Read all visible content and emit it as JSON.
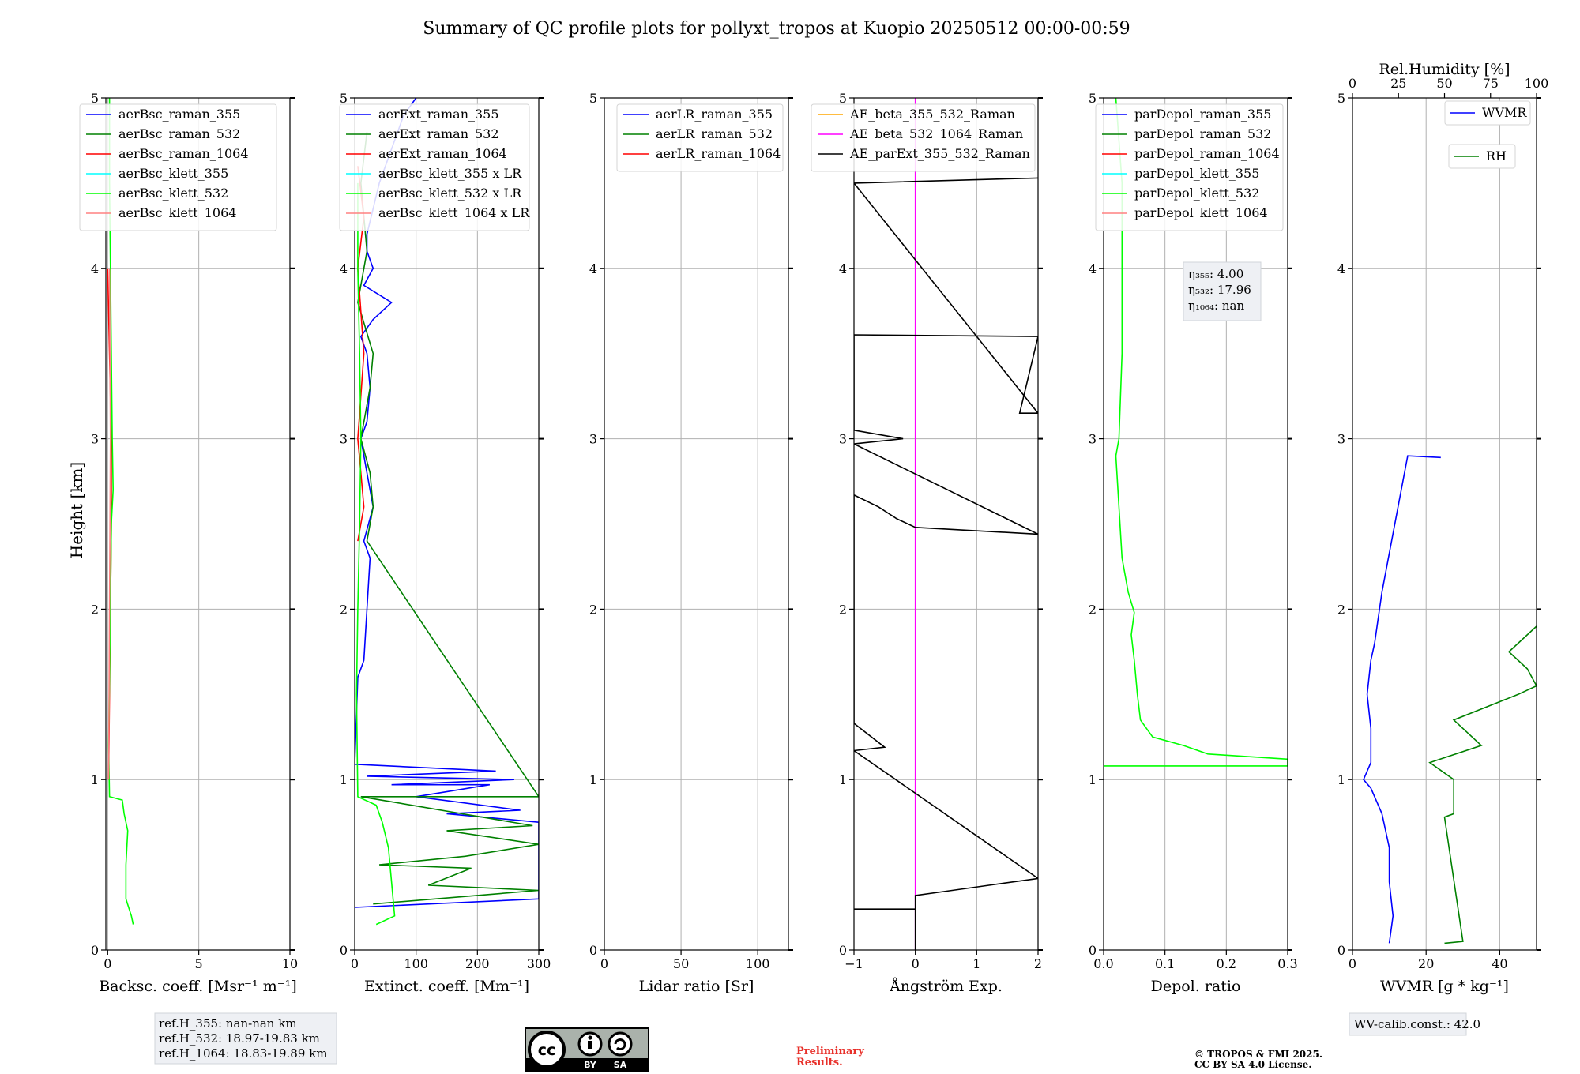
{
  "title": "Summary of QC profile plots for pollyxt_tropos at Kuopio 20250512 00:00-00:59",
  "ylabel": "Height [km]",
  "y_ticks": [
    "0",
    "1",
    "2",
    "3",
    "4",
    "5"
  ],
  "panels": [
    {
      "xlabel": "Backsc. coeff. [Msr⁻¹ m⁻¹]",
      "xlim": [
        -0.1,
        10
      ],
      "xticks": [
        0,
        5,
        10
      ],
      "legend": [
        "aerBsc_raman_355",
        "aerBsc_raman_532",
        "aerBsc_raman_1064",
        "aerBsc_klett_355",
        "aerBsc_klett_532",
        "aerBsc_klett_1064"
      ]
    },
    {
      "xlabel": "Extinct. coeff. [Mm⁻¹]",
      "xlim": [
        0,
        300
      ],
      "xticks": [
        0,
        100,
        200,
        300
      ],
      "legend": [
        "aerExt_raman_355",
        "aerExt_raman_532",
        "aerExt_raman_1064",
        "aerBsc_klett_355 x LR",
        "aerBsc_klett_532 x LR",
        "aerBsc_klett_1064 x LR"
      ]
    },
    {
      "xlabel": "Lidar ratio [Sr]",
      "xlim": [
        0,
        120
      ],
      "xticks": [
        0,
        50,
        100
      ],
      "legend": [
        "aerLR_raman_355",
        "aerLR_raman_532",
        "aerLR_raman_1064"
      ]
    },
    {
      "xlabel": "Ångström Exp.",
      "xlim": [
        -1,
        2
      ],
      "xticks": [
        -1,
        0,
        1,
        2
      ],
      "xticklabels": [
        "−1",
        "0",
        "1",
        "2"
      ],
      "legend": [
        "AE_beta_355_532_Raman",
        "AE_beta_532_1064_Raman",
        "AE_parExt_355_532_Raman"
      ]
    },
    {
      "xlabel": "Depol. ratio",
      "xlim": [
        0,
        0.3
      ],
      "xticks": [
        0,
        0.1,
        0.2,
        0.3
      ],
      "xticklabels": [
        "0.0",
        "0.1",
        "0.2",
        "0.3"
      ],
      "legend": [
        "parDepol_raman_355",
        "parDepol_raman_532",
        "parDepol_raman_1064",
        "parDepol_klett_355",
        "parDepol_klett_532",
        "parDepol_klett_1064"
      ],
      "eta": [
        "η₃₅₅: 4.00",
        "η₅₃₂: 17.96",
        "η₁₀₆₄: nan"
      ]
    },
    {
      "xlabel": "WVMR [g * kg⁻¹]",
      "xlim": [
        0,
        50
      ],
      "xticks": [
        0,
        20,
        40
      ],
      "top_label": "Rel.Humidity [%]",
      "top_xlim": [
        0,
        100
      ],
      "top_ticks": [
        0,
        25,
        50,
        75,
        100
      ],
      "legend": [
        "WVMR",
        "RH"
      ]
    }
  ],
  "footer": {
    "ref_h": [
      "ref.H_355: nan-nan km",
      "ref.H_532: 18.97-19.83 km",
      "ref.H_1064: 18.83-19.89 km"
    ],
    "preliminary": [
      "Preliminary",
      "Results."
    ],
    "copyright": [
      "© TROPOS & FMI 2025.",
      "CC BY SA 4.0 License."
    ],
    "wv_calib": "WV-calib.const.: 42.0",
    "license_badge": [
      "cc",
      "BY",
      "SA"
    ]
  },
  "colors": {
    "raman_355": "#0000ff",
    "raman_532": "#008000",
    "raman_1064": "#ff0000",
    "klett_355": "#00ffff",
    "klett_532": "#00ff00",
    "klett_1064": "#ff8080",
    "ae_355_532": "#ffa500",
    "ae_532_1064": "#ff00ff",
    "ae_parext": "#000000"
  },
  "chart_data": [
    {
      "type": "line",
      "xlabel": "Backsc. coeff. [Msr⁻¹ m⁻¹]",
      "ylabel": "Height [km]",
      "ylim": [
        0,
        5
      ],
      "xlim": [
        -0.1,
        10
      ],
      "series": [
        {
          "name": "aerBsc_raman_355",
          "points": []
        },
        {
          "name": "aerBsc_raman_532",
          "points": []
        },
        {
          "name": "aerBsc_raman_1064",
          "points": [
            [
              0.05,
              1.0
            ],
            [
              0.1,
              1.5
            ],
            [
              0.15,
              2.0
            ],
            [
              0.2,
              2.5
            ],
            [
              0.2,
              3.0
            ],
            [
              0.1,
              3.5
            ],
            [
              0.0,
              4.0
            ]
          ]
        },
        {
          "name": "aerBsc_klett_355",
          "points": []
        },
        {
          "name": "aerBsc_klett_532",
          "points": [
            [
              1.4,
              0.15
            ],
            [
              1.3,
              0.2
            ],
            [
              1.0,
              0.3
            ],
            [
              1.0,
              0.5
            ],
            [
              1.1,
              0.7
            ],
            [
              0.9,
              0.8
            ],
            [
              0.8,
              0.88
            ],
            [
              0.1,
              0.9
            ],
            [
              0.05,
              1.2
            ],
            [
              0.1,
              1.6
            ],
            [
              0.15,
              2.0
            ],
            [
              0.2,
              2.5
            ],
            [
              0.3,
              2.7
            ],
            [
              0.25,
              3.0
            ],
            [
              0.2,
              3.5
            ],
            [
              0.15,
              4.0
            ],
            [
              0.1,
              4.5
            ],
            [
              0.1,
              5.0
            ]
          ]
        },
        {
          "name": "aerBsc_klett_1064",
          "points": [
            [
              0.05,
              1.0
            ],
            [
              0.1,
              2.0
            ],
            [
              0.15,
              3.0
            ],
            [
              0.1,
              4.0
            ]
          ]
        }
      ]
    },
    {
      "type": "line",
      "xlabel": "Extinct. coeff. [Mm⁻¹]",
      "ylabel": "Height [km]",
      "ylim": [
        0,
        5
      ],
      "xlim": [
        0,
        300
      ],
      "series": [
        {
          "name": "aerExt_raman_355",
          "points": [
            [
              0,
              0.25
            ],
            [
              300,
              0.3
            ],
            [
              300,
              0.75
            ],
            [
              150,
              0.8
            ],
            [
              270,
              0.82
            ],
            [
              100,
              0.9
            ],
            [
              220,
              0.97
            ],
            [
              60,
              0.97
            ],
            [
              260,
              1.0
            ],
            [
              20,
              1.02
            ],
            [
              230,
              1.05
            ],
            [
              0,
              1.09
            ],
            [
              5,
              1.6
            ],
            [
              15,
              1.7
            ],
            [
              20,
              2.0
            ],
            [
              25,
              2.3
            ],
            [
              15,
              2.4
            ],
            [
              30,
              2.6
            ],
            [
              15,
              2.9
            ],
            [
              10,
              3.0
            ],
            [
              20,
              3.1
            ],
            [
              25,
              3.3
            ],
            [
              20,
              3.5
            ],
            [
              10,
              3.6
            ],
            [
              30,
              3.7
            ],
            [
              60,
              3.8
            ],
            [
              15,
              3.9
            ],
            [
              30,
              4.0
            ],
            [
              20,
              4.1
            ],
            [
              20,
              4.2
            ],
            [
              40,
              4.5
            ],
            [
              80,
              4.9
            ],
            [
              100,
              5.0
            ]
          ]
        },
        {
          "name": "aerExt_raman_532",
          "points": [
            [
              30,
              0.27
            ],
            [
              300,
              0.35
            ],
            [
              120,
              0.38
            ],
            [
              190,
              0.48
            ],
            [
              40,
              0.5
            ],
            [
              180,
              0.55
            ],
            [
              300,
              0.62
            ],
            [
              150,
              0.7
            ],
            [
              290,
              0.73
            ],
            [
              10,
              0.9
            ],
            [
              300,
              0.9
            ],
            [
              20,
              2.4
            ],
            [
              30,
              2.6
            ],
            [
              25,
              2.8
            ],
            [
              10,
              3.0
            ],
            [
              25,
              3.3
            ],
            [
              30,
              3.5
            ],
            [
              5,
              3.8
            ],
            [
              20,
              4.1
            ],
            [
              10,
              4.5
            ],
            [
              20,
              4.8
            ]
          ]
        },
        {
          "name": "aerExt_raman_1064",
          "points": [
            [
              5,
              2.4
            ],
            [
              15,
              2.6
            ],
            [
              10,
              2.8
            ],
            [
              5,
              3.0
            ],
            [
              15,
              3.5
            ],
            [
              5,
              4.0
            ],
            [
              15,
              4.3
            ],
            [
              5,
              4.6
            ]
          ]
        },
        {
          "name": "aerBsc_klett_355 x LR",
          "points": []
        },
        {
          "name": "aerBsc_klett_532 x LR",
          "points": [
            [
              35,
              0.15
            ],
            [
              65,
              0.2
            ],
            [
              60,
              0.4
            ],
            [
              55,
              0.6
            ],
            [
              45,
              0.75
            ],
            [
              35,
              0.85
            ],
            [
              5,
              0.9
            ],
            [
              3,
              1.5
            ],
            [
              5,
              2.0
            ],
            [
              8,
              2.5
            ],
            [
              10,
              3.0
            ],
            [
              8,
              3.5
            ],
            [
              5,
              4.0
            ],
            [
              5,
              4.5
            ]
          ]
        },
        {
          "name": "aerBsc_klett_1064 x LR",
          "points": []
        }
      ]
    },
    {
      "type": "line",
      "xlabel": "Lidar ratio [Sr]",
      "ylabel": "Height [km]",
      "ylim": [
        0,
        5
      ],
      "xlim": [
        0,
        120
      ],
      "series": [
        {
          "name": "aerLR_raman_355",
          "points": []
        },
        {
          "name": "aerLR_raman_532",
          "points": []
        },
        {
          "name": "aerLR_raman_1064",
          "points": []
        }
      ]
    },
    {
      "type": "line",
      "xlabel": "Ångström Exp.",
      "ylabel": "Height [km]",
      "ylim": [
        0,
        5
      ],
      "xlim": [
        -1,
        2
      ],
      "series": [
        {
          "name": "AE_beta_355_532_Raman",
          "points": []
        },
        {
          "name": "AE_beta_532_1064_Raman",
          "points": [
            [
              0,
              0
            ],
            [
              0,
              5
            ]
          ]
        },
        {
          "name": "AE_parExt_355_532_Raman",
          "points": [
            [
              -1,
              0.24
            ],
            [
              0,
              0.24
            ],
            [
              0,
              0.0
            ],
            [
              0,
              0.32
            ],
            [
              0.6,
              0.35
            ],
            [
              1.2,
              0.38
            ],
            [
              2,
              0.42
            ],
            [
              -1,
              1.17
            ],
            [
              -0.5,
              1.19
            ],
            [
              -1,
              1.33
            ],
            [
              -1,
              2.67
            ],
            [
              -0.6,
              2.6
            ],
            [
              -0.3,
              2.53
            ],
            [
              0,
              2.48
            ],
            [
              2,
              2.44
            ],
            [
              -1,
              2.97
            ],
            [
              -0.2,
              3.0
            ],
            [
              -1,
              3.05
            ],
            [
              -1,
              3.61
            ],
            [
              2,
              3.6
            ],
            [
              1.7,
              3.15
            ],
            [
              2,
              3.15
            ],
            [
              -1,
              4.5
            ],
            [
              2,
              4.53
            ]
          ]
        }
      ]
    },
    {
      "type": "line",
      "xlabel": "Depol. ratio",
      "ylabel": "Height [km]",
      "ylim": [
        0,
        5
      ],
      "xlim": [
        0,
        0.3
      ],
      "series": [
        {
          "name": "parDepol_raman_355",
          "points": []
        },
        {
          "name": "parDepol_raman_532",
          "points": []
        },
        {
          "name": "parDepol_raman_1064",
          "points": []
        },
        {
          "name": "parDepol_klett_355",
          "points": []
        },
        {
          "name": "parDepol_klett_532",
          "points": [
            [
              0,
              1.08
            ],
            [
              0.3,
              1.08
            ],
            [
              0.3,
              1.12
            ],
            [
              0.17,
              1.15
            ],
            [
              0.13,
              1.2
            ],
            [
              0.08,
              1.25
            ],
            [
              0.06,
              1.35
            ],
            [
              0.055,
              1.5
            ],
            [
              0.05,
              1.7
            ],
            [
              0.045,
              1.85
            ],
            [
              0.05,
              1.98
            ],
            [
              0.04,
              2.1
            ],
            [
              0.03,
              2.3
            ],
            [
              0.025,
              2.6
            ],
            [
              0.02,
              2.9
            ],
            [
              0.025,
              3.0
            ],
            [
              0.03,
              3.5
            ],
            [
              0.03,
              4.0
            ],
            [
              0.03,
              4.5
            ],
            [
              0.02,
              5.0
            ]
          ]
        },
        {
          "name": "parDepol_klett_1064",
          "points": []
        }
      ]
    },
    {
      "type": "line",
      "xlabel": "WVMR [g * kg⁻¹]",
      "ylabel": "Height [km]",
      "ylim": [
        0,
        5
      ],
      "xlim": [
        0,
        50
      ],
      "top_axis": {
        "label": "Rel.Humidity [%]",
        "xlim": [
          0,
          100
        ]
      },
      "series": [
        {
          "name": "WVMR",
          "points": [
            [
              10,
              0.04
            ],
            [
              11,
              0.2
            ],
            [
              10,
              0.4
            ],
            [
              10,
              0.6
            ],
            [
              8,
              0.8
            ],
            [
              5,
              0.95
            ],
            [
              3,
              1.0
            ],
            [
              5,
              1.1
            ],
            [
              5,
              1.3
            ],
            [
              4,
              1.5
            ],
            [
              5,
              1.7
            ],
            [
              6,
              1.8
            ],
            [
              8,
              2.1
            ],
            [
              15,
              2.9
            ],
            [
              24,
              2.89
            ]
          ]
        },
        {
          "name": "RH",
          "points": [
            [
              50,
              0.04
            ],
            [
              60,
              0.05
            ],
            [
              50,
              0.78
            ],
            [
              55,
              0.8
            ],
            [
              55,
              1.0
            ],
            [
              42,
              1.1
            ],
            [
              70,
              1.2
            ],
            [
              55,
              1.35
            ],
            [
              90,
              1.5
            ],
            [
              100,
              1.55
            ],
            [
              95,
              1.65
            ],
            [
              85,
              1.75
            ],
            [
              100,
              1.9
            ]
          ]
        }
      ]
    }
  ]
}
